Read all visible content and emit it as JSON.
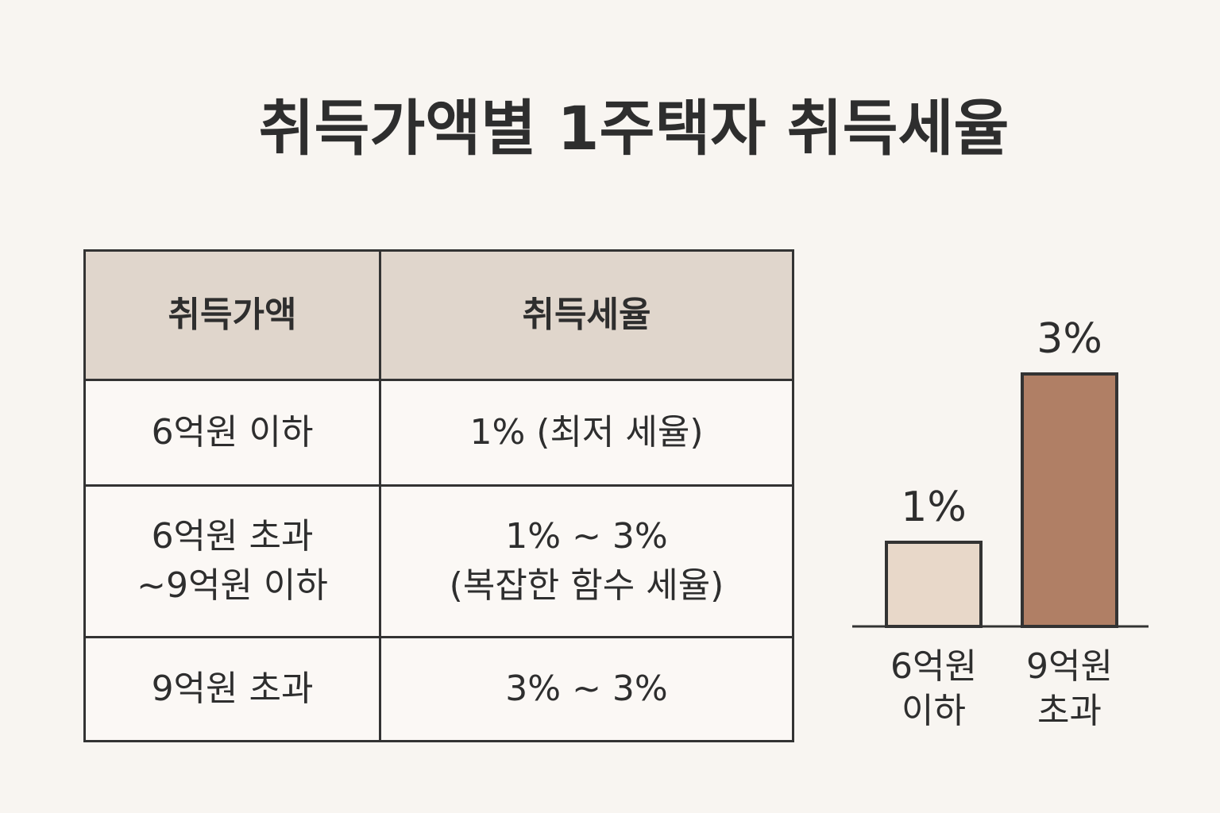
{
  "title": "취득가액별 1주택자 취득세율",
  "table": {
    "header": [
      "취득가액",
      "취득세율"
    ],
    "rows": [
      [
        "6억원 이하",
        "1% (최저 세율)"
      ],
      [
        "6억원 초과\n~9억원 이하",
        "1% ~ 3%\n(복잡한 함수 세율)"
      ],
      [
        "9억원 초과",
        "3% ~ 3%"
      ]
    ]
  },
  "chart_data": {
    "type": "bar",
    "categories": [
      "6억원 이하",
      "9억원 초과"
    ],
    "series": [
      {
        "name": null,
        "values": [
          1,
          3
        ],
        "value_labels": [
          "1%",
          "3%"
        ],
        "colors": [
          "#e8d8c9",
          "#b07f65"
        ]
      }
    ]
  }
}
